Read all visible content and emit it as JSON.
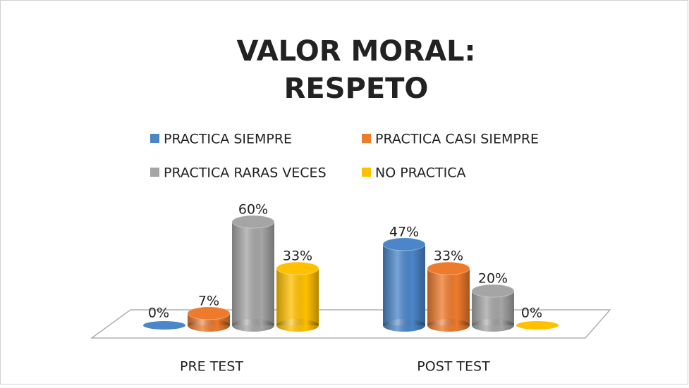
{
  "chart_data": {
    "type": "bar3d-cylinder",
    "title": [
      "VALOR MORAL:",
      "RESPETO"
    ],
    "categories": [
      "PRE TEST",
      "POST TEST"
    ],
    "series": [
      {
        "name": "PRACTICA SIEMPRE",
        "color": "#4a86c8",
        "values": [
          0,
          47
        ],
        "value_labels": [
          "0%",
          "47%"
        ]
      },
      {
        "name": "PRACTICA CASI SIEMPRE",
        "color": "#ee7a2c",
        "values": [
          7,
          33
        ],
        "value_labels": [
          "7%",
          "33%"
        ]
      },
      {
        "name": "PRACTICA RARAS VECES",
        "color": "#a5a5a5",
        "values": [
          60,
          20
        ],
        "value_labels": [
          "60%",
          "20%"
        ]
      },
      {
        "name": "NO PRACTICA",
        "color": "#ffc000",
        "values": [
          33,
          0
        ],
        "value_labels": [
          "33%",
          "0%"
        ]
      }
    ]
  }
}
